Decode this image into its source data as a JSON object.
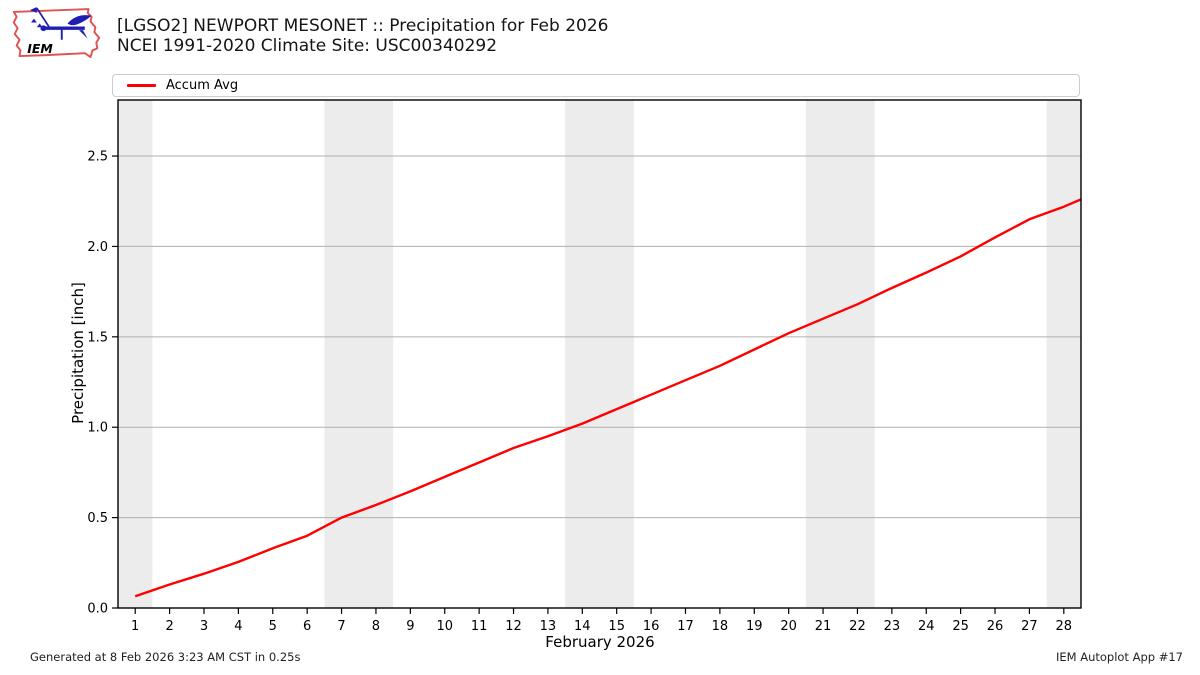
{
  "header": {
    "logo_text": "IEM",
    "title_line1": "[LGSO2] NEWPORT MESONET :: Precipitation for Feb 2026",
    "title_line2": "NCEI 1991-2020 Climate Site: USC00340292"
  },
  "legend": {
    "items": [
      {
        "label": "Accum Avg",
        "color": "#ff0000"
      }
    ]
  },
  "chart_data": {
    "type": "line",
    "title": "[LGSO2] NEWPORT MESONET :: Precipitation for Feb 2026",
    "subtitle": "NCEI 1991-2020 Climate Site: USC00340292",
    "xlabel": "February 2026",
    "ylabel": "Precipitation [inch]",
    "xlim": [
      0.5,
      28.5
    ],
    "ylim": [
      0,
      2.81
    ],
    "xticks": [
      1,
      2,
      3,
      4,
      5,
      6,
      7,
      8,
      9,
      10,
      11,
      12,
      13,
      14,
      15,
      16,
      17,
      18,
      19,
      20,
      21,
      22,
      23,
      24,
      25,
      26,
      27,
      28
    ],
    "ytick_values": [
      0,
      0.5,
      1.0,
      1.5,
      2.0,
      2.5
    ],
    "ytick_labels": [
      "0.0",
      "0.5",
      "1.0",
      "1.5",
      "2.0",
      "2.5"
    ],
    "grid": "horizontal",
    "legend_position": "top-left",
    "band_color": "#ececec",
    "grid_color": "#b0b0b0",
    "weekend_bands": [
      [
        0.5,
        1.5
      ],
      [
        6.5,
        8.5
      ],
      [
        13.5,
        15.5
      ],
      [
        20.5,
        22.5
      ],
      [
        27.5,
        28.5
      ]
    ],
    "series": [
      {
        "name": "Accum Avg",
        "color": "#ff0000",
        "x": [
          1,
          2,
          3,
          4,
          5,
          6,
          7,
          8,
          9,
          10,
          11,
          12,
          13,
          14,
          15,
          16,
          17,
          18,
          19,
          20,
          21,
          22,
          23,
          24,
          25,
          26,
          27,
          28,
          28.5
        ],
        "y": [
          0.065,
          0.13,
          0.19,
          0.255,
          0.33,
          0.4,
          0.5,
          0.57,
          0.645,
          0.725,
          0.805,
          0.885,
          0.95,
          1.02,
          1.1,
          1.18,
          1.26,
          1.34,
          1.43,
          1.52,
          1.6,
          1.68,
          1.77,
          1.855,
          1.945,
          2.05,
          2.15,
          2.22,
          2.26
        ]
      }
    ]
  },
  "footer": {
    "generated": "Generated at 8 Feb 2026 3:23 AM CST in 0.25s",
    "app": "IEM Autoplot App #17"
  }
}
